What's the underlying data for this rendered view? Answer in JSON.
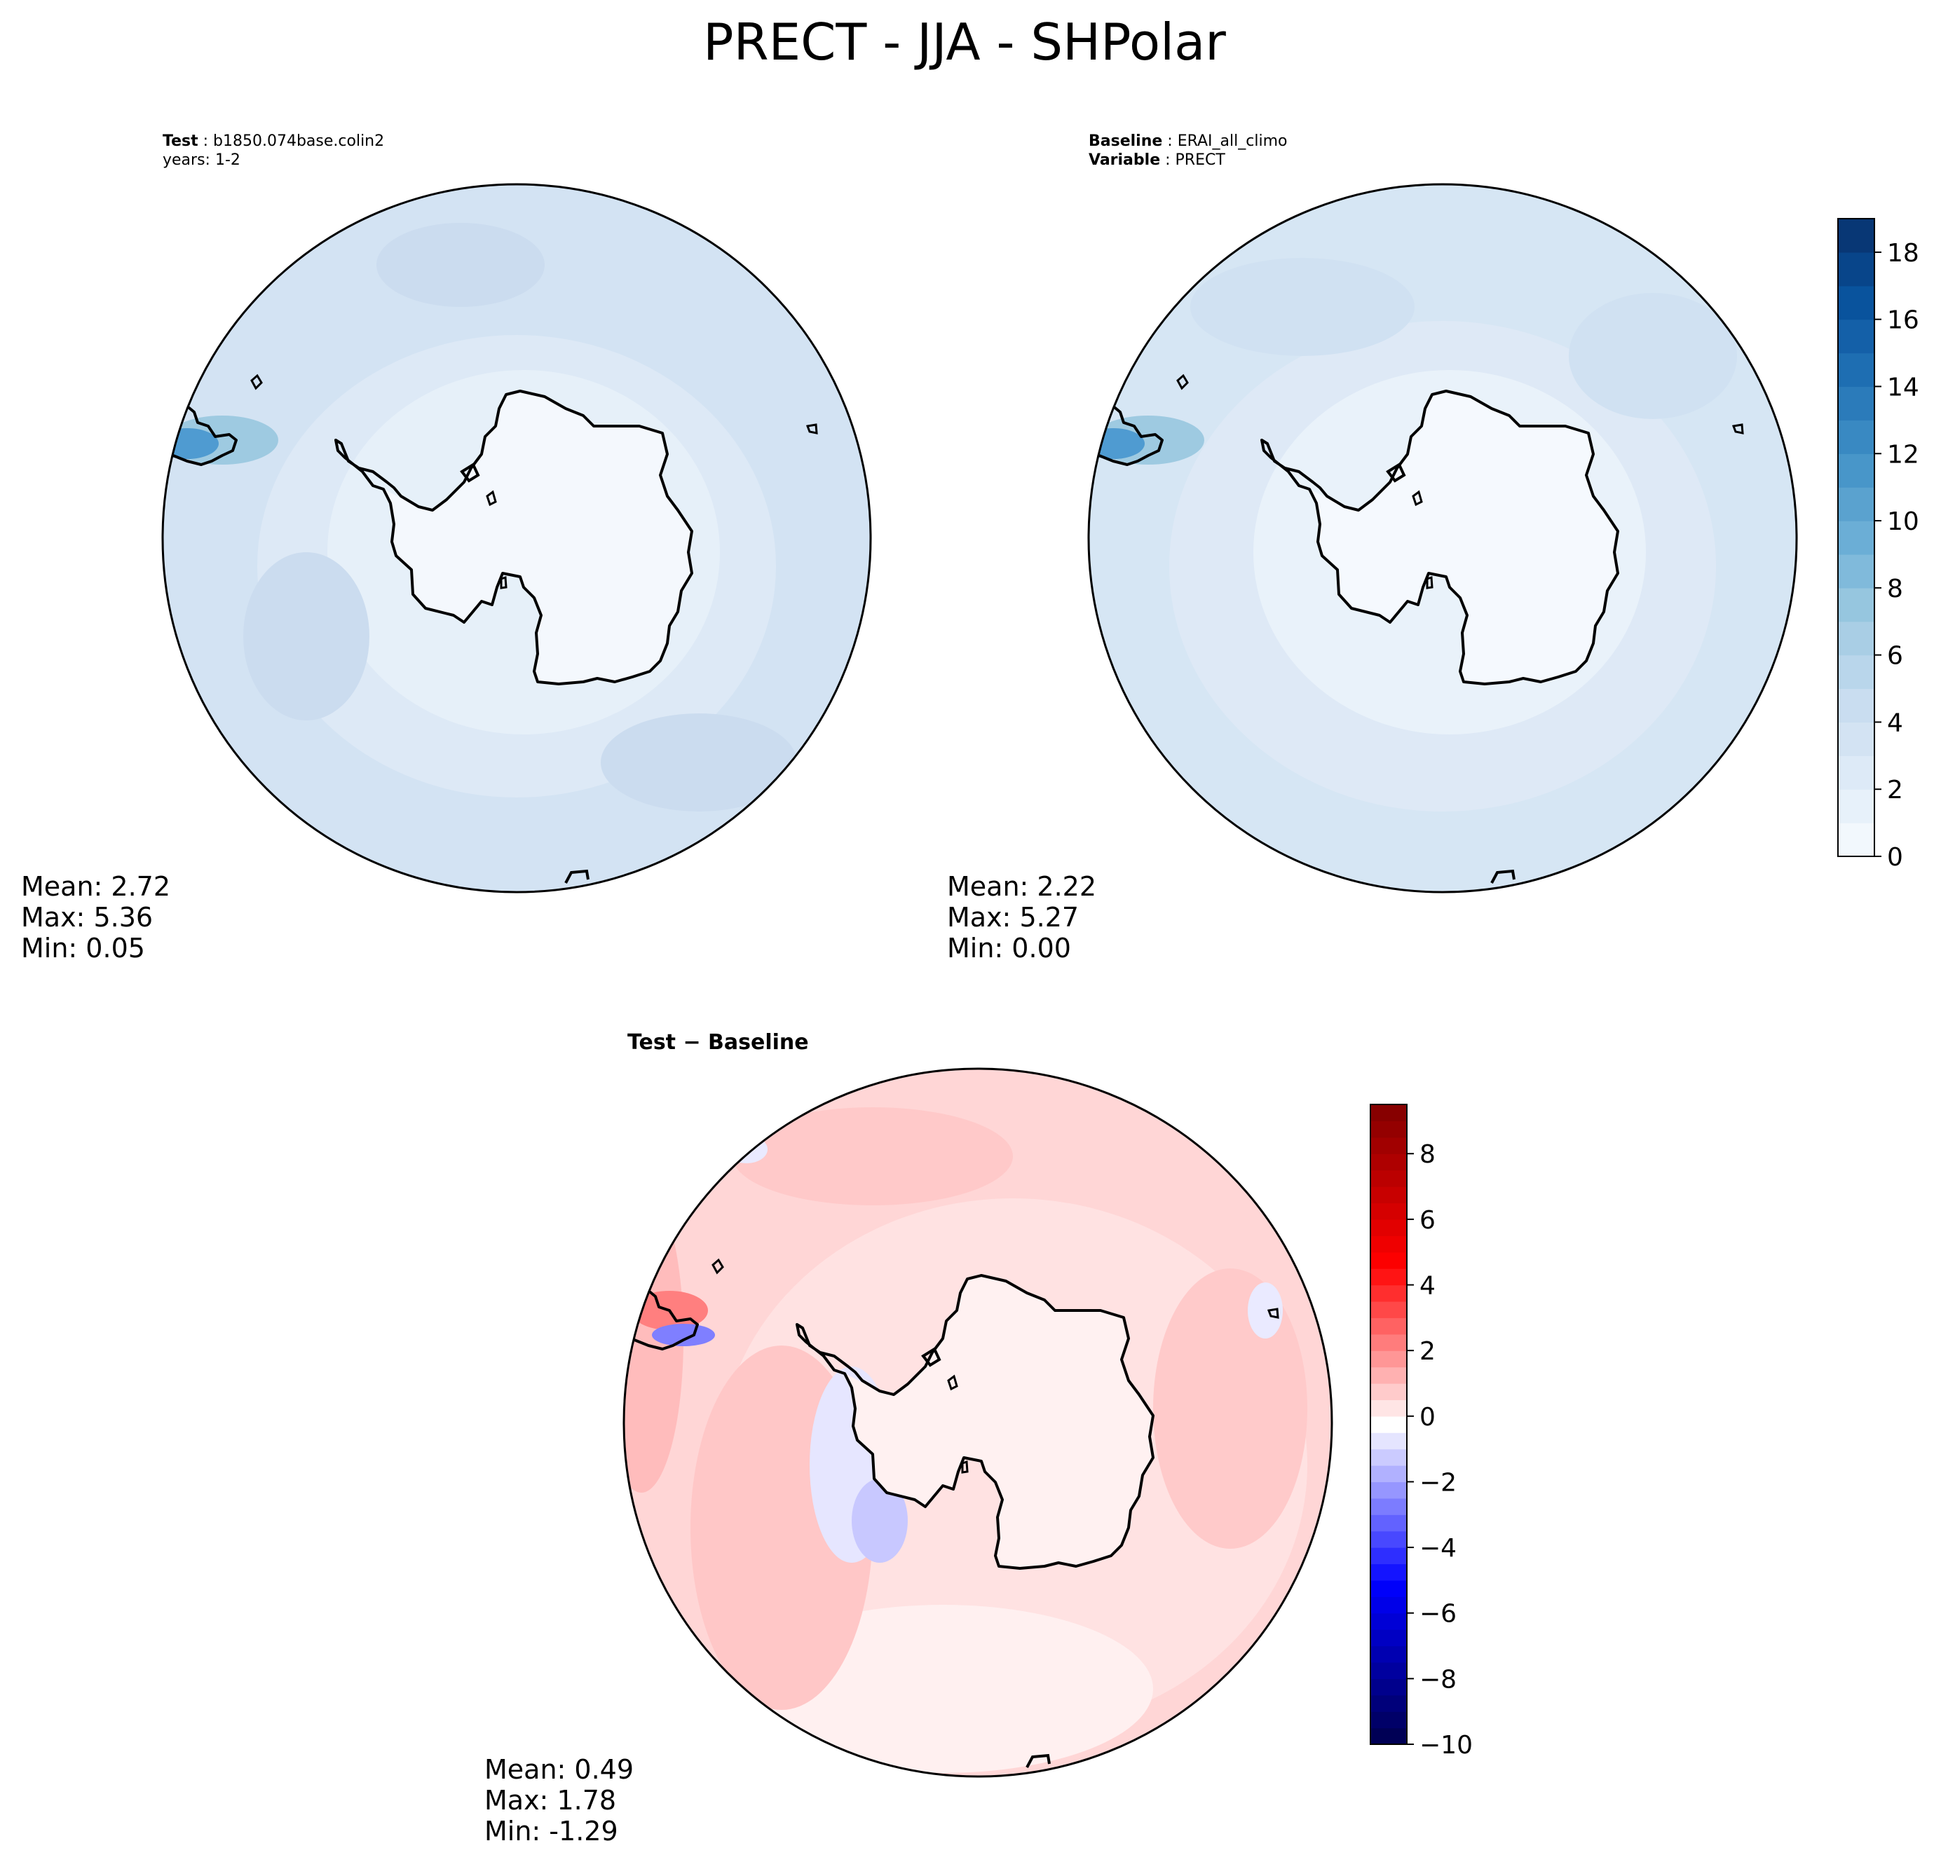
{
  "figure": {
    "title": "PRECT - JJA - SHPolar"
  },
  "panels": {
    "test": {
      "header": [
        {
          "key": "Test",
          "sep": " : ",
          "value": "b1850.074base.colin2"
        },
        {
          "key": "",
          "sep": "",
          "value": "years: 1-2"
        }
      ],
      "stats": {
        "mean": "Mean:  2.72",
        "max": "Max:  5.36",
        "min": "Min:  0.05"
      }
    },
    "baseline": {
      "header": [
        {
          "key": "Baseline",
          "sep": " : ",
          "value": "ERAI_all_climo"
        },
        {
          "key": "Variable",
          "sep": " : ",
          "value": "PRECT"
        }
      ],
      "stats": {
        "mean": "Mean:  2.22",
        "max": "Max:  5.27",
        "min": "Min:  0.00"
      }
    },
    "difference": {
      "title": "Test − Baseline",
      "stats": {
        "mean": "Mean:  0.49",
        "max": "Max:  1.78",
        "min": "Min: -1.29"
      }
    }
  },
  "chart_data": [
    {
      "type": "heatmap",
      "name": "test-map",
      "projection": "south-polar-stereographic",
      "field_mean": 2.72,
      "field_max": 5.36,
      "field_min": 0.05,
      "colormap": "Blues",
      "colorbar_range": [
        0,
        19
      ]
    },
    {
      "type": "heatmap",
      "name": "baseline-map",
      "projection": "south-polar-stereographic",
      "field_mean": 2.22,
      "field_max": 5.27,
      "field_min": 0.0,
      "colormap": "Blues",
      "colorbar": {
        "range": [
          0,
          19
        ],
        "levels": 19,
        "ticks": [
          0,
          2,
          4,
          6,
          8,
          10,
          12,
          14,
          16,
          18
        ],
        "tick_labels": [
          "0",
          "2",
          "4",
          "6",
          "8",
          "10",
          "12",
          "14",
          "16",
          "18"
        ],
        "colors": [
          "#f7fbff",
          "#deebf7",
          "#c6dbef",
          "#9ecae1",
          "#6baed6",
          "#4292c6",
          "#2171b5",
          "#08519c",
          "#08306b"
        ]
      }
    },
    {
      "type": "heatmap",
      "name": "difference-map",
      "projection": "south-polar-stereographic",
      "field_mean": 0.49,
      "field_max": 1.78,
      "field_min": -1.29,
      "colormap": "seismic",
      "colorbar": {
        "range": [
          -10,
          9.5
        ],
        "levels": 39,
        "ticks": [
          -10,
          -8,
          -6,
          -4,
          -2,
          0,
          2,
          4,
          6,
          8
        ],
        "tick_labels": [
          "−10",
          "−8",
          "−6",
          "−4",
          "−2",
          "0",
          "2",
          "4",
          "6",
          "8"
        ],
        "colors": [
          "#00004c",
          "#0000ff",
          "#ffffff",
          "#ff0000",
          "#800000"
        ]
      }
    }
  ]
}
